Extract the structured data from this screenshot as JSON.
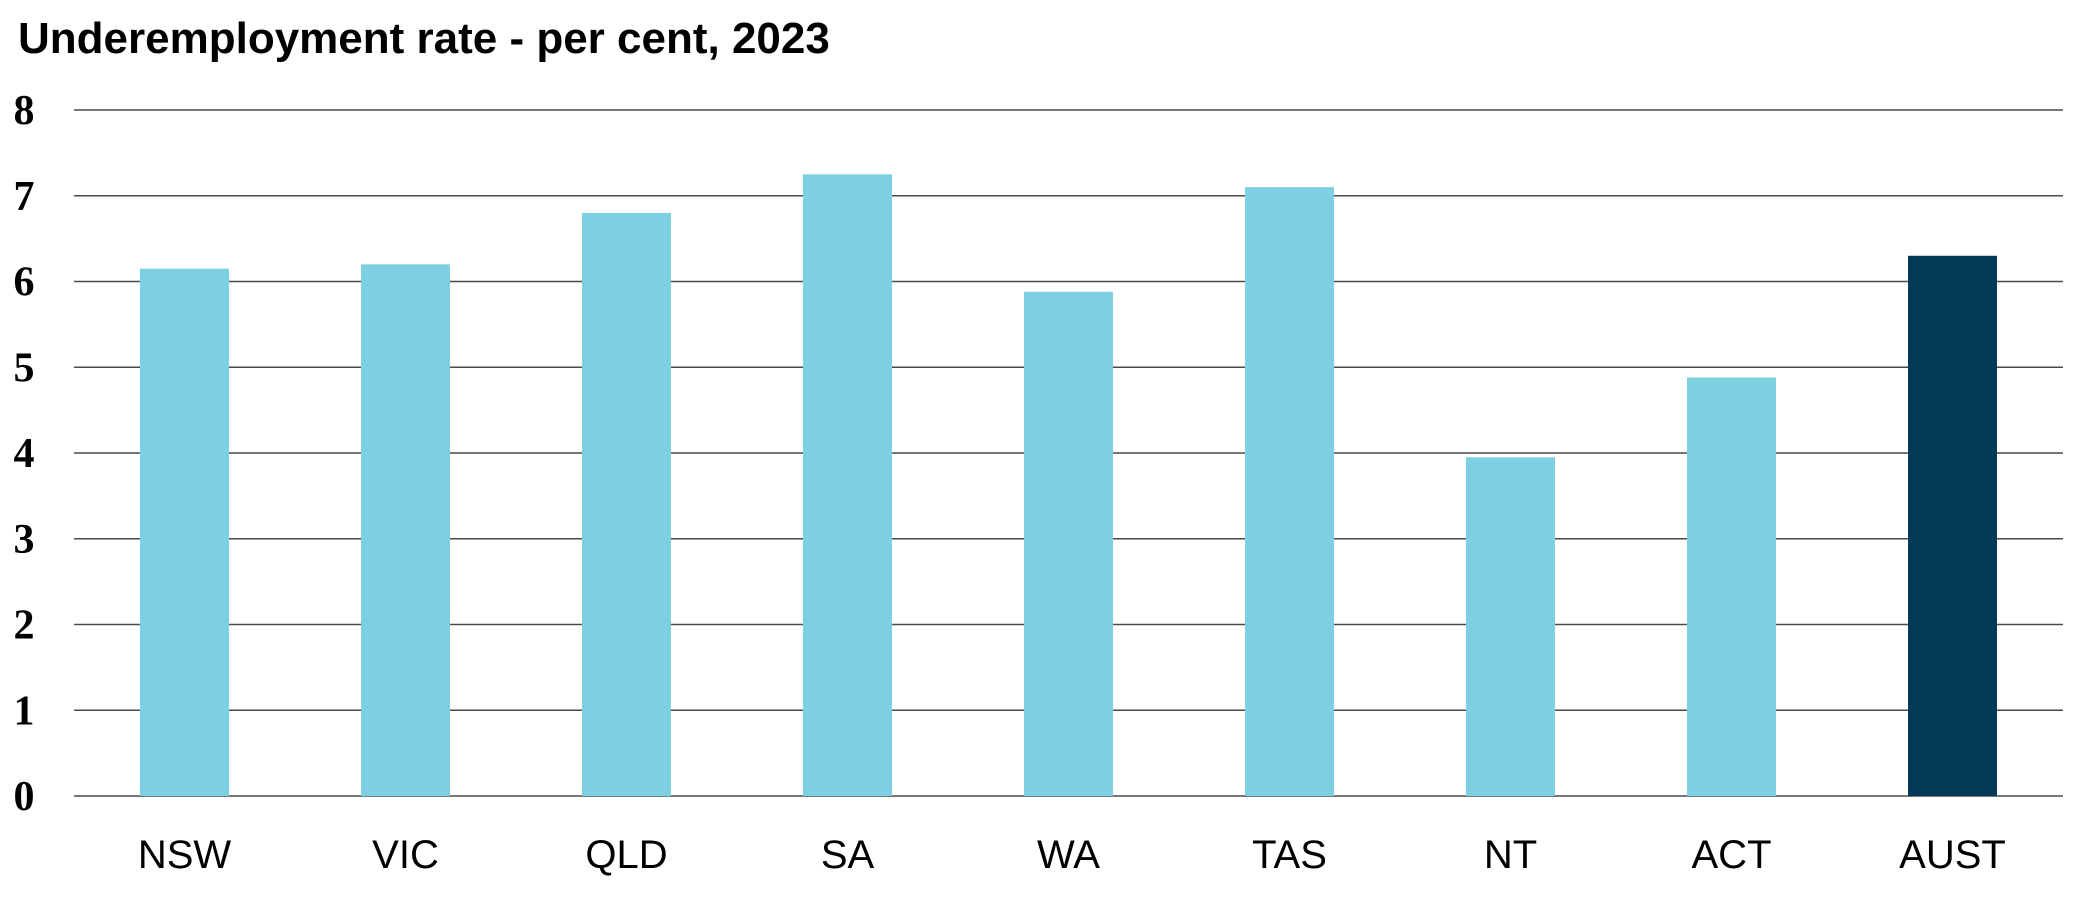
{
  "chart_data": {
    "type": "bar",
    "title": "Underemployment rate - per cent, 2023",
    "xlabel": "",
    "ylabel": "",
    "ylim": [
      0,
      8
    ],
    "yticks": [
      "0",
      "1",
      "2",
      "3",
      "4",
      "5",
      "6",
      "7",
      "8"
    ],
    "grid": true,
    "legend": "none",
    "categories": [
      "NSW",
      "VIC",
      "QLD",
      "SA",
      "WA",
      "TAS",
      "NT",
      "ACT",
      "AUST"
    ],
    "values": [
      6.15,
      6.2,
      6.8,
      7.25,
      5.88,
      7.1,
      3.95,
      4.88,
      6.3
    ],
    "colors": {
      "default": "#7dd0e1",
      "highlight": "#053a56"
    },
    "highlight_category": "AUST"
  }
}
